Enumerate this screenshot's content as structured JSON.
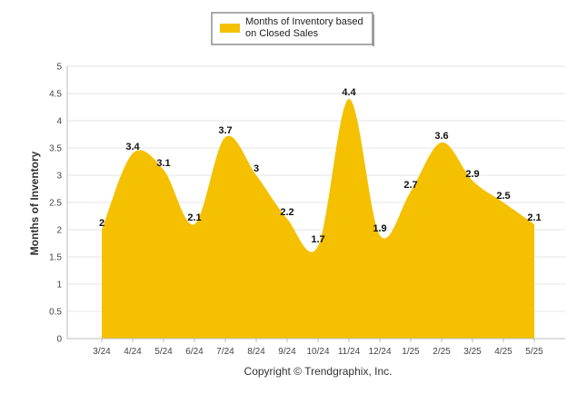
{
  "chart_data": {
    "type": "area",
    "categories": [
      "3/24",
      "4/24",
      "5/24",
      "6/24",
      "7/24",
      "8/24",
      "9/24",
      "10/24",
      "11/24",
      "12/24",
      "1/25",
      "2/25",
      "3/25",
      "4/25",
      "5/25"
    ],
    "series": [
      {
        "name": "Months of Inventory based on Closed Sales",
        "values": [
          2,
          3.4,
          3.1,
          2.1,
          3.7,
          3,
          2.2,
          1.7,
          4.4,
          1.9,
          2.7,
          3.6,
          2.9,
          2.5,
          2.1
        ],
        "color": "#F5C000"
      }
    ],
    "xlabel": "",
    "ylabel": "Months of Inventory",
    "ylim": [
      0,
      5
    ],
    "yticks": [
      "0",
      "0.5",
      "1",
      "1.5",
      "2",
      "2.5",
      "3",
      "3.5",
      "4",
      "4.5",
      "5"
    ],
    "grid": true,
    "legend_position": "top-center"
  },
  "legend": {
    "line1": "Months of Inventory based",
    "line2": "on Closed Sales"
  },
  "footer": {
    "copyright": "Copyright © Trendgraphix, Inc."
  }
}
